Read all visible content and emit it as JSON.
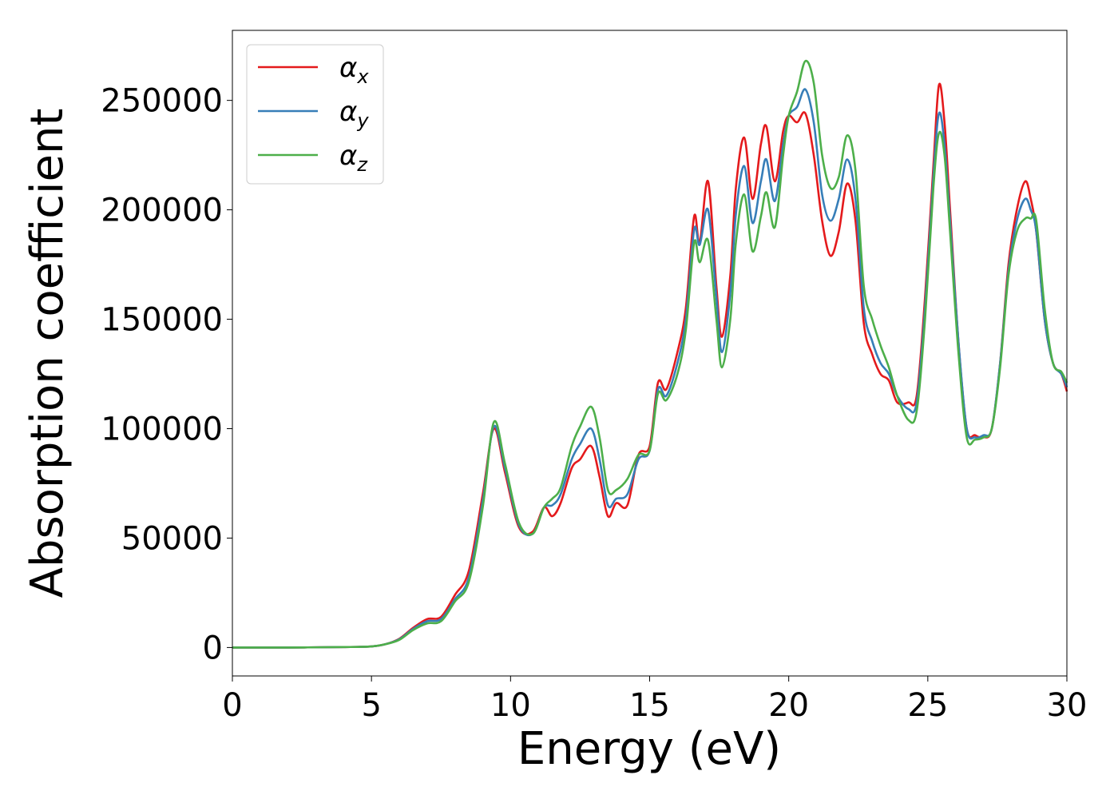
{
  "chart_data": {
    "type": "line",
    "title": "",
    "xlabel": "Energy (eV)",
    "ylabel": "Absorption coefficient",
    "xlim": [
      0,
      30
    ],
    "ylim": [
      -13000,
      282000
    ],
    "xticks": [
      0,
      5,
      10,
      15,
      20,
      25,
      30
    ],
    "xtick_labels": [
      "0",
      "5",
      "10",
      "15",
      "20",
      "25",
      "30"
    ],
    "yticks": [
      0,
      50000,
      100000,
      150000,
      200000,
      250000
    ],
    "ytick_labels": [
      "0",
      "50000",
      "100000",
      "150000",
      "200000",
      "250000"
    ],
    "grid": false,
    "legend_position": "top-left",
    "series": [
      {
        "name": "αx",
        "legend_base": "α",
        "legend_sub": "x",
        "color": "#e41a1c",
        "x": [
          0,
          2,
          4,
          5,
          5.5,
          6,
          6.5,
          7,
          7.5,
          8,
          8.5,
          9,
          9.4,
          9.8,
          10.3,
          10.8,
          11.2,
          11.5,
          11.8,
          12.2,
          12.5,
          12.9,
          13.2,
          13.5,
          13.8,
          14.2,
          14.6,
          15.0,
          15.3,
          15.6,
          16.0,
          16.3,
          16.6,
          16.8,
          17.1,
          17.4,
          17.6,
          17.9,
          18.1,
          18.4,
          18.7,
          19.0,
          19.2,
          19.5,
          19.8,
          20.0,
          20.3,
          20.6,
          20.9,
          21.2,
          21.5,
          21.8,
          22.1,
          22.4,
          22.7,
          23.0,
          23.3,
          23.6,
          23.9,
          24.3,
          24.6,
          24.9,
          25.2,
          25.4,
          25.6,
          25.8,
          26.1,
          26.4,
          26.7,
          27.0,
          27.3,
          27.6,
          27.9,
          28.2,
          28.5,
          28.7,
          28.9,
          29.2,
          29.5,
          29.8,
          30
        ],
        "values": [
          0,
          0,
          200,
          500,
          1500,
          4000,
          9000,
          13000,
          14000,
          24000,
          35000,
          70000,
          100000,
          80000,
          55000,
          53000,
          64000,
          60000,
          66000,
          82000,
          86000,
          92000,
          78000,
          60000,
          66000,
          65000,
          88000,
          92000,
          121000,
          118000,
          135000,
          155000,
          197000,
          185000,
          213000,
          165000,
          142000,
          170000,
          210000,
          233000,
          205000,
          230000,
          238000,
          213000,
          236000,
          243000,
          240000,
          244000,
          225000,
          195000,
          179000,
          190000,
          212000,
          195000,
          148000,
          134000,
          125000,
          122000,
          112000,
          112000,
          115000,
          160000,
          220000,
          257000,
          240000,
          200000,
          140000,
          100000,
          97000,
          96000,
          100000,
          130000,
          175000,
          200000,
          213000,
          205000,
          190000,
          150000,
          130000,
          125000,
          117000
        ]
      },
      {
        "name": "αy",
        "legend_base": "α",
        "legend_sub": "y",
        "color": "#377eb8",
        "x": [
          0,
          2,
          4,
          5,
          5.5,
          6,
          6.5,
          7,
          7.5,
          8,
          8.5,
          9,
          9.4,
          9.8,
          10.3,
          10.8,
          11.2,
          11.5,
          11.8,
          12.2,
          12.5,
          12.9,
          13.2,
          13.5,
          13.8,
          14.2,
          14.6,
          15.0,
          15.3,
          15.6,
          16.0,
          16.3,
          16.6,
          16.8,
          17.1,
          17.4,
          17.6,
          17.9,
          18.1,
          18.4,
          18.7,
          19.0,
          19.2,
          19.5,
          19.8,
          20.0,
          20.3,
          20.6,
          20.9,
          21.2,
          21.5,
          21.8,
          22.1,
          22.4,
          22.7,
          23.0,
          23.3,
          23.6,
          23.9,
          24.3,
          24.6,
          24.9,
          25.2,
          25.4,
          25.6,
          25.8,
          26.1,
          26.4,
          26.7,
          27.0,
          27.3,
          27.6,
          27.9,
          28.2,
          28.5,
          28.7,
          28.9,
          29.2,
          29.5,
          29.8,
          30
        ],
        "values": [
          0,
          0,
          200,
          500,
          1500,
          3800,
          8500,
          12000,
          13000,
          22000,
          32000,
          67000,
          101000,
          82000,
          56000,
          52000,
          64000,
          65000,
          70000,
          86000,
          93000,
          100000,
          86000,
          65000,
          68000,
          70000,
          86000,
          90000,
          118000,
          115000,
          130000,
          150000,
          191000,
          184000,
          200000,
          160000,
          135000,
          162000,
          198000,
          220000,
          194000,
          213000,
          223000,
          204000,
          230000,
          243000,
          247000,
          255000,
          240000,
          207000,
          195000,
          205000,
          223000,
          205000,
          155000,
          140000,
          130000,
          125000,
          115000,
          109000,
          112000,
          155000,
          215000,
          244000,
          230000,
          195000,
          140000,
          100000,
          96000,
          97000,
          100000,
          130000,
          172000,
          195000,
          205000,
          200000,
          190000,
          150000,
          130000,
          125000,
          119000
        ]
      },
      {
        "name": "αz",
        "legend_base": "α",
        "legend_sub": "z",
        "color": "#4daf4a",
        "x": [
          0,
          2,
          4,
          5,
          5.5,
          6,
          6.5,
          7,
          7.5,
          8,
          8.5,
          9,
          9.4,
          9.8,
          10.3,
          10.8,
          11.2,
          11.5,
          11.8,
          12.2,
          12.5,
          12.9,
          13.2,
          13.5,
          13.8,
          14.2,
          14.6,
          15.0,
          15.3,
          15.6,
          16.0,
          16.3,
          16.6,
          16.8,
          17.1,
          17.4,
          17.6,
          17.9,
          18.1,
          18.4,
          18.7,
          19.0,
          19.2,
          19.5,
          19.8,
          20.0,
          20.3,
          20.6,
          20.9,
          21.2,
          21.5,
          21.8,
          22.1,
          22.4,
          22.7,
          23.0,
          23.3,
          23.6,
          23.9,
          24.3,
          24.6,
          24.9,
          25.2,
          25.4,
          25.6,
          25.8,
          26.1,
          26.4,
          26.7,
          27.0,
          27.3,
          27.6,
          27.9,
          28.2,
          28.5,
          28.7,
          28.9,
          29.2,
          29.5,
          29.8,
          30
        ],
        "values": [
          0,
          0,
          200,
          500,
          1500,
          3500,
          8000,
          11000,
          12000,
          21000,
          30000,
          64000,
          103000,
          84000,
          57000,
          52000,
          64000,
          68000,
          73000,
          92000,
          101000,
          110000,
          96000,
          72000,
          72000,
          77000,
          88000,
          90000,
          116000,
          113000,
          125000,
          145000,
          185000,
          176000,
          186000,
          150000,
          128000,
          150000,
          185000,
          207000,
          181000,
          197000,
          208000,
          192000,
          225000,
          243000,
          254000,
          268000,
          258000,
          225000,
          210000,
          215000,
          234000,
          218000,
          165000,
          150000,
          138000,
          128000,
          115000,
          104000,
          108000,
          150000,
          210000,
          235000,
          225000,
          190000,
          135000,
          96000,
          95000,
          96000,
          100000,
          128000,
          170000,
          190000,
          196000,
          196000,
          195000,
          155000,
          130000,
          126000,
          121000
        ]
      }
    ]
  }
}
